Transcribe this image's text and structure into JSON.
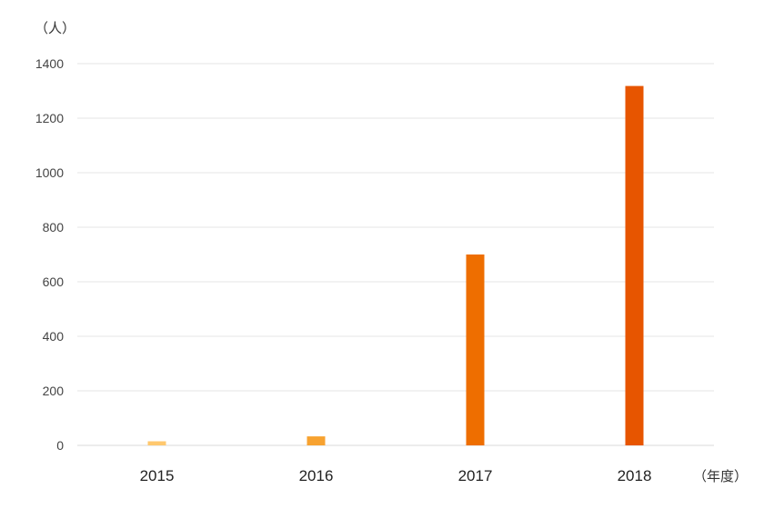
{
  "chart_data": {
    "type": "bar",
    "y_unit_label": "（人）",
    "x_unit_label": "（年度）",
    "categories": [
      "2015",
      "2016",
      "2017",
      "2018"
    ],
    "values": [
      15,
      33,
      700,
      1318
    ],
    "bar_colors": [
      "#FFC86E",
      "#F7A230",
      "#EE6E00",
      "#E75500"
    ],
    "ylim": [
      0,
      1400
    ],
    "yticks": [
      0,
      200,
      400,
      600,
      800,
      1000,
      1200,
      1400
    ],
    "grid": true,
    "legend": "none"
  }
}
